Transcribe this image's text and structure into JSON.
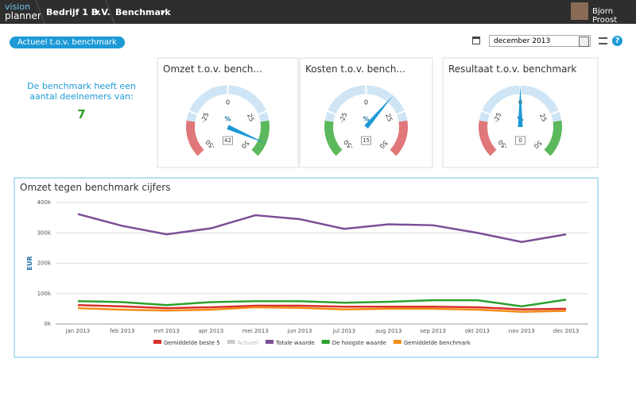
{
  "header": {
    "logo_top": "vision",
    "logo_bottom": "planner",
    "company": "Bedrijf 1 B.V.",
    "menu": "Benchmark",
    "user": "Bjorn Proost"
  },
  "toolbar": {
    "tab": "Actueel t.o.v. benchmark",
    "date": "december 2013",
    "help": "?"
  },
  "info": {
    "text": "De benchmark heeft een aantal deelnemers van:",
    "count": "7"
  },
  "chart_data": [
    {
      "type": "gauge",
      "title": "Omzet t.o.v. bench...",
      "value": 42,
      "unit": "%",
      "ylim": [
        -50,
        50
      ],
      "yticks": [
        -50,
        -25,
        0,
        25,
        50
      ],
      "bands": [
        {
          "from": -50,
          "to": -30,
          "color": "#e0777a"
        },
        {
          "from": -30,
          "to": 30,
          "color": "#cfe5f5"
        },
        {
          "from": 30,
          "to": 50,
          "color": "#5cb85c"
        }
      ]
    },
    {
      "type": "gauge",
      "title": "Kosten t.o.v. bench...",
      "value": 15,
      "unit": "%",
      "ylim": [
        -50,
        50
      ],
      "yticks": [
        -50,
        -25,
        0,
        25,
        50
      ],
      "bands": [
        {
          "from": -50,
          "to": -30,
          "color": "#5cb85c"
        },
        {
          "from": -30,
          "to": 30,
          "color": "#cfe5f5"
        },
        {
          "from": 30,
          "to": 50,
          "color": "#e0777a"
        }
      ]
    },
    {
      "type": "gauge",
      "title": "Resultaat t.o.v. benchmark",
      "value": 0,
      "unit": "%",
      "ylim": [
        -50,
        50
      ],
      "yticks": [
        -50,
        -25,
        0,
        25,
        50
      ],
      "bands": [
        {
          "from": -50,
          "to": -30,
          "color": "#e0777a"
        },
        {
          "from": -30,
          "to": 30,
          "color": "#cfe5f5"
        },
        {
          "from": 30,
          "to": 50,
          "color": "#5cb85c"
        }
      ]
    },
    {
      "type": "line",
      "title": "Omzet tegen benchmark cijfers",
      "y_label": "EUR",
      "categories": [
        "jan 2013",
        "feb 2013",
        "mrt 2013",
        "apr 2013",
        "mei 2013",
        "jun 2013",
        "jul 2013",
        "aug 2013",
        "sep 2013",
        "okt 2013",
        "nov 2013",
        "dec 2013"
      ],
      "series": [
        {
          "name": "Gemiddelde beste 5",
          "color": "#d9302c",
          "values": [
            62000,
            58000,
            52000,
            55000,
            60000,
            60000,
            57000,
            57000,
            57000,
            55000,
            48000,
            50000
          ]
        },
        {
          "name": "Actueel",
          "color": "#cccccc",
          "values": [
            null,
            null,
            null,
            null,
            null,
            null,
            null,
            null,
            null,
            null,
            null,
            null
          ]
        },
        {
          "name": "Totale waarde",
          "color": "#7b4f96",
          "values": [
            362000,
            323000,
            295000,
            315000,
            358000,
            345000,
            313000,
            328000,
            325000,
            300000,
            270000,
            295000
          ]
        },
        {
          "name": "De hoogste waarde",
          "color": "#2ca02c",
          "values": [
            75000,
            72000,
            62000,
            72000,
            75000,
            75000,
            70000,
            73000,
            78000,
            78000,
            58000,
            80000
          ]
        },
        {
          "name": "Gemiddelde benchmark",
          "color": "#f28c1a",
          "values": [
            52000,
            47000,
            44000,
            47000,
            55000,
            53000,
            48000,
            50000,
            50000,
            47000,
            40000,
            43000
          ]
        }
      ],
      "ylim": [
        0,
        400000
      ],
      "yticks": [
        {
          "value": 0,
          "label": "0k"
        },
        {
          "value": 100000,
          "label": "100k"
        },
        {
          "value": 200000,
          "label": "200k"
        },
        {
          "value": 300000,
          "label": "300k"
        },
        {
          "value": 400000,
          "label": "400k"
        }
      ],
      "grid": true
    }
  ]
}
